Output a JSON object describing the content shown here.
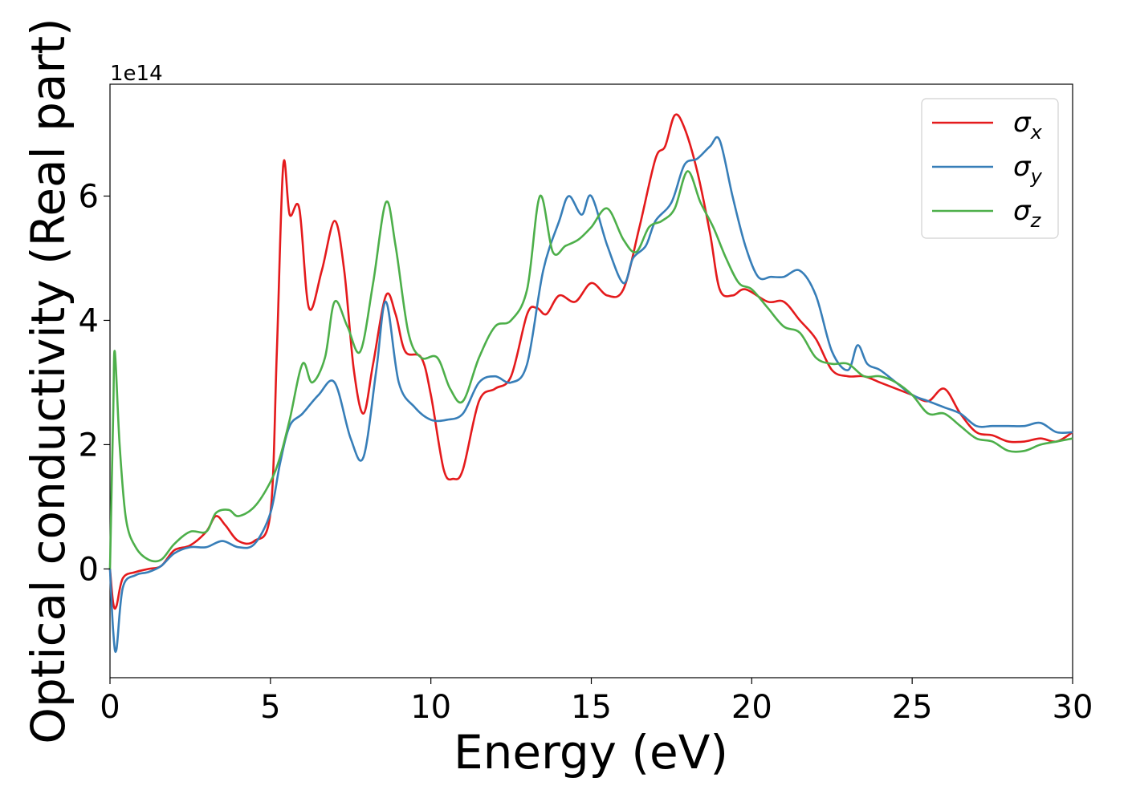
{
  "chart_data": {
    "type": "line",
    "title": "",
    "xlabel": "Energy (eV)",
    "ylabel": "Optical conductivity (Real part)",
    "y_offset_label": "1e14",
    "xlim": [
      0,
      30
    ],
    "ylim": [
      -1.75,
      7.8
    ],
    "xticks": [
      0,
      5,
      10,
      15,
      20,
      25,
      30
    ],
    "xtick_labels": [
      "0",
      "5",
      "10",
      "15",
      "20",
      "25",
      "30"
    ],
    "yticks": [
      0,
      2,
      4,
      6
    ],
    "ytick_labels": [
      "0",
      "2",
      "4",
      "6"
    ],
    "grid": false,
    "legend_position": "top-right",
    "x_units_note": "eV",
    "y_scale_multiplier": 100000000000000.0,
    "series": [
      {
        "name": "σx",
        "legend_main": "σ",
        "legend_sub": "x",
        "color": "#e41a1c",
        "points": [
          [
            0,
            0
          ],
          [
            0.1,
            -0.55
          ],
          [
            0.2,
            -0.6
          ],
          [
            0.4,
            -0.15
          ],
          [
            0.8,
            -0.05
          ],
          [
            1.2,
            0
          ],
          [
            1.6,
            0.05
          ],
          [
            2,
            0.3
          ],
          [
            2.5,
            0.38
          ],
          [
            3,
            0.6
          ],
          [
            3.3,
            0.85
          ],
          [
            3.6,
            0.7
          ],
          [
            4,
            0.45
          ],
          [
            4.5,
            0.45
          ],
          [
            5,
            0.9
          ],
          [
            5.2,
            3.5
          ],
          [
            5.4,
            6.5
          ],
          [
            5.6,
            5.7
          ],
          [
            5.9,
            5.8
          ],
          [
            6.2,
            4.2
          ],
          [
            6.6,
            4.8
          ],
          [
            7,
            5.6
          ],
          [
            7.3,
            4.8
          ],
          [
            7.6,
            3.2
          ],
          [
            7.9,
            2.5
          ],
          [
            8.2,
            3.3
          ],
          [
            8.6,
            4.4
          ],
          [
            8.9,
            4.1
          ],
          [
            9.2,
            3.5
          ],
          [
            9.7,
            3.4
          ],
          [
            10,
            2.8
          ],
          [
            10.4,
            1.6
          ],
          [
            10.7,
            1.45
          ],
          [
            11,
            1.6
          ],
          [
            11.5,
            2.7
          ],
          [
            12,
            2.9
          ],
          [
            12.5,
            3.1
          ],
          [
            13,
            4.1
          ],
          [
            13.3,
            4.2
          ],
          [
            13.6,
            4.1
          ],
          [
            14,
            4.4
          ],
          [
            14.5,
            4.3
          ],
          [
            15,
            4.6
          ],
          [
            15.5,
            4.4
          ],
          [
            16,
            4.5
          ],
          [
            16.5,
            5.5
          ],
          [
            17,
            6.6
          ],
          [
            17.3,
            6.8
          ],
          [
            17.6,
            7.3
          ],
          [
            17.9,
            7.1
          ],
          [
            18.3,
            6.4
          ],
          [
            18.7,
            5.4
          ],
          [
            19,
            4.5
          ],
          [
            19.4,
            4.4
          ],
          [
            19.8,
            4.5
          ],
          [
            20.5,
            4.3
          ],
          [
            21,
            4.3
          ],
          [
            21.5,
            4.0
          ],
          [
            22,
            3.7
          ],
          [
            22.5,
            3.2
          ],
          [
            23,
            3.1
          ],
          [
            23.5,
            3.1
          ],
          [
            24,
            3.0
          ],
          [
            24.5,
            2.9
          ],
          [
            25,
            2.8
          ],
          [
            25.5,
            2.7
          ],
          [
            26,
            2.9
          ],
          [
            26.5,
            2.5
          ],
          [
            27,
            2.2
          ],
          [
            27.5,
            2.15
          ],
          [
            28,
            2.05
          ],
          [
            28.5,
            2.05
          ],
          [
            29,
            2.1
          ],
          [
            29.5,
            2.05
          ],
          [
            30,
            2.2
          ]
        ]
      },
      {
        "name": "σy",
        "legend_main": "σ",
        "legend_sub": "y",
        "color": "#377eb8",
        "points": [
          [
            0,
            0
          ],
          [
            0.1,
            -1.0
          ],
          [
            0.2,
            -1.3
          ],
          [
            0.4,
            -0.3
          ],
          [
            0.8,
            -0.1
          ],
          [
            1.2,
            -0.05
          ],
          [
            1.6,
            0.05
          ],
          [
            2,
            0.25
          ],
          [
            2.5,
            0.35
          ],
          [
            3,
            0.35
          ],
          [
            3.5,
            0.45
          ],
          [
            4,
            0.35
          ],
          [
            4.5,
            0.4
          ],
          [
            5,
            0.9
          ],
          [
            5.3,
            1.7
          ],
          [
            5.6,
            2.3
          ],
          [
            6,
            2.5
          ],
          [
            6.5,
            2.8
          ],
          [
            7,
            3.0
          ],
          [
            7.5,
            2.1
          ],
          [
            7.9,
            1.8
          ],
          [
            8.3,
            3.2
          ],
          [
            8.6,
            4.3
          ],
          [
            9,
            3.0
          ],
          [
            9.5,
            2.6
          ],
          [
            10,
            2.4
          ],
          [
            10.5,
            2.4
          ],
          [
            11,
            2.5
          ],
          [
            11.5,
            3.0
          ],
          [
            12,
            3.1
          ],
          [
            12.5,
            3.0
          ],
          [
            13,
            3.3
          ],
          [
            13.5,
            4.8
          ],
          [
            14,
            5.6
          ],
          [
            14.3,
            6.0
          ],
          [
            14.7,
            5.7
          ],
          [
            15,
            6.0
          ],
          [
            15.5,
            5.2
          ],
          [
            16,
            4.6
          ],
          [
            16.3,
            5.0
          ],
          [
            16.7,
            5.2
          ],
          [
            17,
            5.6
          ],
          [
            17.5,
            5.9
          ],
          [
            17.9,
            6.5
          ],
          [
            18.3,
            6.6
          ],
          [
            18.7,
            6.8
          ],
          [
            19,
            6.9
          ],
          [
            19.4,
            6.0
          ],
          [
            19.8,
            5.2
          ],
          [
            20.2,
            4.7
          ],
          [
            20.6,
            4.7
          ],
          [
            21,
            4.7
          ],
          [
            21.5,
            4.8
          ],
          [
            22,
            4.4
          ],
          [
            22.5,
            3.5
          ],
          [
            23,
            3.2
          ],
          [
            23.3,
            3.6
          ],
          [
            23.6,
            3.3
          ],
          [
            24,
            3.2
          ],
          [
            24.5,
            3.0
          ],
          [
            25,
            2.8
          ],
          [
            25.5,
            2.7
          ],
          [
            26,
            2.6
          ],
          [
            26.5,
            2.5
          ],
          [
            27,
            2.3
          ],
          [
            27.5,
            2.3
          ],
          [
            28,
            2.3
          ],
          [
            28.5,
            2.3
          ],
          [
            29,
            2.35
          ],
          [
            29.5,
            2.2
          ],
          [
            30,
            2.2
          ]
        ]
      },
      {
        "name": "σz",
        "legend_main": "σ",
        "legend_sub": "z",
        "color": "#4daf4a",
        "points": [
          [
            0,
            0
          ],
          [
            0.1,
            2.5
          ],
          [
            0.15,
            3.5
          ],
          [
            0.3,
            2.0
          ],
          [
            0.5,
            0.8
          ],
          [
            0.8,
            0.35
          ],
          [
            1.2,
            0.15
          ],
          [
            1.6,
            0.15
          ],
          [
            2,
            0.4
          ],
          [
            2.5,
            0.6
          ],
          [
            3,
            0.6
          ],
          [
            3.3,
            0.9
          ],
          [
            3.7,
            0.95
          ],
          [
            4,
            0.85
          ],
          [
            4.5,
            1.0
          ],
          [
            5,
            1.4
          ],
          [
            5.3,
            1.8
          ],
          [
            5.6,
            2.4
          ],
          [
            6,
            3.3
          ],
          [
            6.3,
            3.0
          ],
          [
            6.7,
            3.4
          ],
          [
            7,
            4.3
          ],
          [
            7.4,
            3.9
          ],
          [
            7.8,
            3.5
          ],
          [
            8.2,
            4.6
          ],
          [
            8.6,
            5.9
          ],
          [
            8.9,
            5.2
          ],
          [
            9.3,
            3.8
          ],
          [
            9.7,
            3.4
          ],
          [
            10.2,
            3.4
          ],
          [
            10.6,
            2.9
          ],
          [
            11,
            2.7
          ],
          [
            11.5,
            3.4
          ],
          [
            12,
            3.9
          ],
          [
            12.5,
            4.0
          ],
          [
            13,
            4.5
          ],
          [
            13.4,
            6.0
          ],
          [
            13.8,
            5.1
          ],
          [
            14.2,
            5.2
          ],
          [
            14.6,
            5.3
          ],
          [
            15,
            5.5
          ],
          [
            15.5,
            5.8
          ],
          [
            16,
            5.3
          ],
          [
            16.4,
            5.1
          ],
          [
            16.8,
            5.5
          ],
          [
            17.2,
            5.6
          ],
          [
            17.6,
            5.8
          ],
          [
            18,
            6.4
          ],
          [
            18.4,
            5.9
          ],
          [
            18.8,
            5.5
          ],
          [
            19.2,
            5.0
          ],
          [
            19.6,
            4.6
          ],
          [
            20,
            4.5
          ],
          [
            20.5,
            4.2
          ],
          [
            21,
            3.9
          ],
          [
            21.5,
            3.8
          ],
          [
            22,
            3.4
          ],
          [
            22.5,
            3.3
          ],
          [
            23,
            3.3
          ],
          [
            23.5,
            3.1
          ],
          [
            24,
            3.1
          ],
          [
            24.5,
            3.0
          ],
          [
            25,
            2.8
          ],
          [
            25.5,
            2.5
          ],
          [
            26,
            2.5
          ],
          [
            26.5,
            2.3
          ],
          [
            27,
            2.1
          ],
          [
            27.5,
            2.05
          ],
          [
            28,
            1.9
          ],
          [
            28.5,
            1.9
          ],
          [
            29,
            2.0
          ],
          [
            29.5,
            2.05
          ],
          [
            30,
            2.1
          ]
        ]
      }
    ]
  }
}
